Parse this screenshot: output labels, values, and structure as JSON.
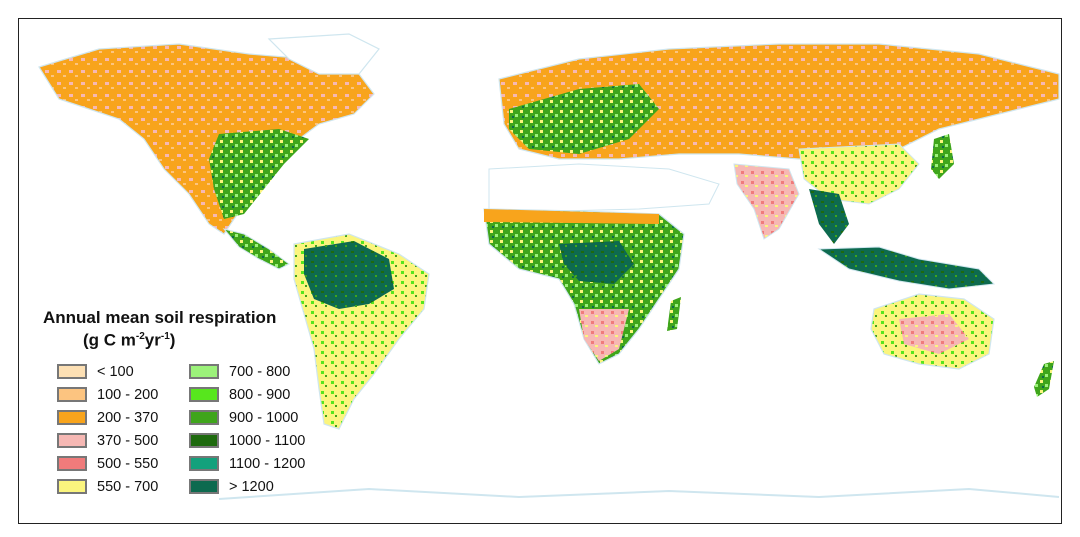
{
  "legend": {
    "title_line1": "Annual mean soil respiration",
    "title_unit": {
      "prefix": "(g C m",
      "sup1": "-2",
      "mid": "yr",
      "sup2": "-1",
      "suffix": ")"
    },
    "items": [
      {
        "label": "< 100",
        "color": "#fde0b4"
      },
      {
        "label": "100 - 200",
        "color": "#fcc480"
      },
      {
        "label": "200 - 370",
        "color": "#f8a41c"
      },
      {
        "label": "370 - 500",
        "color": "#f6b8b4"
      },
      {
        "label": "500 - 550",
        "color": "#f07b7b"
      },
      {
        "label": "550 - 700",
        "color": "#fbf57e"
      },
      {
        "label": "700 - 800",
        "color": "#9cf27a"
      },
      {
        "label": "800 - 900",
        "color": "#57e61d"
      },
      {
        "label": "900 - 1000",
        "color": "#3fa51b"
      },
      {
        "label": "1000 - 1100",
        "color": "#1e6a0e"
      },
      {
        "label": "1100 - 1200",
        "color": "#13a17c"
      },
      {
        "label": "> 1200",
        "color": "#0d6a4f"
      }
    ]
  },
  "map": {
    "ocean_color": "#ffffff",
    "coast_color": "#cfe6ef",
    "ice_color": "#ffffff"
  }
}
